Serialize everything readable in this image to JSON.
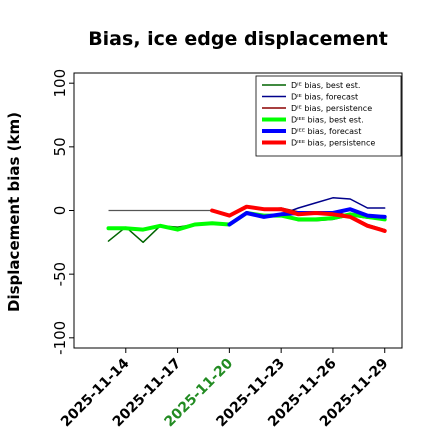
{
  "chart_data": {
    "type": "line",
    "title": "Bias, ice edge displacement",
    "ylabel": "Displacement bias (km)",
    "xlabel": "",
    "ylim": [
      -108,
      108
    ],
    "xlim": [
      "2025-11-11",
      "2025-11-30"
    ],
    "yticks": [
      100,
      50,
      0,
      -50,
      -100
    ],
    "xticks": [
      {
        "date": "2025-11-14",
        "label": "2025-11-14",
        "color": "#000000"
      },
      {
        "date": "2025-11-17",
        "label": "2025-11-17",
        "color": "#000000"
      },
      {
        "date": "2025-11-20",
        "label": "2025-11-20",
        "color": "#228B22"
      },
      {
        "date": "2025-11-23",
        "label": "2025-11-23",
        "color": "#000000"
      },
      {
        "date": "2025-11-26",
        "label": "2025-11-26",
        "color": "#000000"
      },
      {
        "date": "2025-11-29",
        "label": "2025-11-29",
        "color": "#000000"
      }
    ],
    "grid": false,
    "legend": "top-right",
    "series": [
      {
        "name": "Dᴵᴱ bias, best est.",
        "color": "#006400",
        "width": 1.5,
        "points": [
          [
            "2025-11-13",
            -24
          ],
          [
            "2025-11-14",
            -13
          ],
          [
            "2025-11-15",
            -25
          ],
          [
            "2025-11-16",
            -12
          ],
          [
            "2025-11-17",
            -13
          ],
          [
            "2025-11-18",
            -11
          ],
          [
            "2025-11-19",
            -10
          ],
          [
            "2025-11-20",
            -11
          ],
          [
            "2025-11-21",
            -1
          ],
          [
            "2025-11-22",
            -4
          ],
          [
            "2025-11-23",
            -3
          ],
          [
            "2025-11-24",
            -8
          ],
          [
            "2025-11-25",
            -8
          ],
          [
            "2025-11-26",
            -7
          ],
          [
            "2025-11-27",
            -4
          ],
          [
            "2025-11-28",
            -6
          ],
          [
            "2025-11-29",
            -7
          ]
        ]
      },
      {
        "name": "Dᴵᴱ bias, forecast",
        "color": "#00008B",
        "width": 1.5,
        "points": [
          [
            "2025-11-20",
            -11
          ],
          [
            "2025-11-21",
            -2
          ],
          [
            "2025-11-22",
            -5
          ],
          [
            "2025-11-23",
            -3
          ],
          [
            "2025-11-24",
            2
          ],
          [
            "2025-11-25",
            6
          ],
          [
            "2025-11-26",
            10
          ],
          [
            "2025-11-27",
            9
          ],
          [
            "2025-11-28",
            2
          ],
          [
            "2025-11-29",
            2
          ]
        ]
      },
      {
        "name": "Dᴵᴱ bias, persistence",
        "color": "#8B0000",
        "width": 1.5,
        "points": [
          [
            "2025-11-19",
            0
          ],
          [
            "2025-11-20",
            -4
          ],
          [
            "2025-11-21",
            3
          ],
          [
            "2025-11-22",
            1
          ],
          [
            "2025-11-23",
            2
          ],
          [
            "2025-11-24",
            -1
          ],
          [
            "2025-11-25",
            -1
          ],
          [
            "2025-11-26",
            -1
          ],
          [
            "2025-11-27",
            -4
          ],
          [
            "2025-11-28",
            -11
          ],
          [
            "2025-11-29",
            -15
          ]
        ]
      },
      {
        "name": "Dᴵᴱᴱ bias, best est.",
        "color": "#00FF00",
        "width": 4,
        "points": [
          [
            "2025-11-13",
            -14
          ],
          [
            "2025-11-14",
            -14
          ],
          [
            "2025-11-15",
            -15
          ],
          [
            "2025-11-16",
            -12
          ],
          [
            "2025-11-17",
            -15
          ],
          [
            "2025-11-18",
            -11
          ],
          [
            "2025-11-19",
            -10
          ],
          [
            "2025-11-20",
            -11
          ],
          [
            "2025-11-21",
            -2
          ],
          [
            "2025-11-22",
            -4
          ],
          [
            "2025-11-23",
            -4
          ],
          [
            "2025-11-24",
            -7
          ],
          [
            "2025-11-25",
            -7
          ],
          [
            "2025-11-26",
            -6
          ],
          [
            "2025-11-27",
            -3
          ],
          [
            "2025-11-28",
            -5
          ],
          [
            "2025-11-29",
            -7
          ]
        ]
      },
      {
        "name": "Dᴵᴱᴱ bias, forecast",
        "color": "#0000FF",
        "width": 4,
        "points": [
          [
            "2025-11-20",
            -11
          ],
          [
            "2025-11-21",
            -2
          ],
          [
            "2025-11-22",
            -5
          ],
          [
            "2025-11-23",
            -3
          ],
          [
            "2025-11-24",
            -2
          ],
          [
            "2025-11-25",
            -2
          ],
          [
            "2025-11-26",
            -2
          ],
          [
            "2025-11-27",
            1
          ],
          [
            "2025-11-28",
            -4
          ],
          [
            "2025-11-29",
            -5
          ]
        ]
      },
      {
        "name": "Dᴵᴱᴱ bias, persistence",
        "color": "#FF0000",
        "width": 4,
        "points": [
          [
            "2025-11-19",
            0
          ],
          [
            "2025-11-20",
            -4
          ],
          [
            "2025-11-21",
            3
          ],
          [
            "2025-11-22",
            1
          ],
          [
            "2025-11-23",
            1
          ],
          [
            "2025-11-24",
            -3
          ],
          [
            "2025-11-25",
            -2
          ],
          [
            "2025-11-26",
            -3
          ],
          [
            "2025-11-27",
            -5
          ],
          [
            "2025-11-28",
            -12
          ],
          [
            "2025-11-29",
            -16
          ]
        ]
      }
    ],
    "reference_line": {
      "y": 0,
      "from": "2025-11-13",
      "to": "2025-11-19",
      "color": "#555555"
    }
  }
}
